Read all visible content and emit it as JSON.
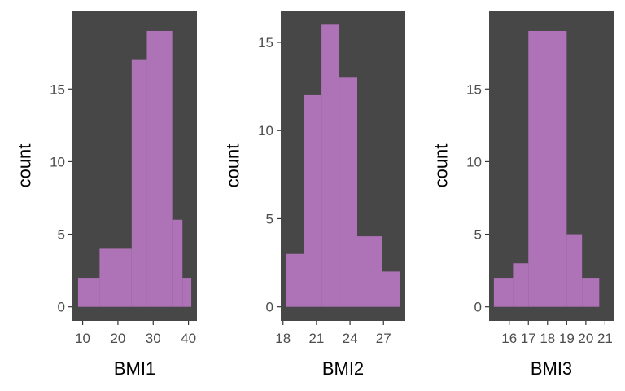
{
  "colors": {
    "panel_bg": "#474747",
    "bar_fill": "#ae72b6",
    "tick_text": "#4d4d4d",
    "axis_title": "#000000"
  },
  "chart_data": [
    {
      "type": "bar",
      "xlabel": "BMI1",
      "ylabel": "count",
      "xlim": [
        7.1,
        42.4
      ],
      "ylim": [
        -0.97,
        20.4
      ],
      "xticks": [
        10,
        20,
        30,
        40
      ],
      "xtick_labels": [
        "10",
        "20",
        "30",
        "40"
      ],
      "yticks": [
        0,
        5,
        10,
        15
      ],
      "ytick_labels": [
        "0",
        "5",
        "10",
        "15"
      ],
      "bins": [
        {
          "x0": 8.7,
          "x1": 14.8,
          "count": 2
        },
        {
          "x0": 14.8,
          "x1": 23.9,
          "count": 4
        },
        {
          "x0": 23.9,
          "x1": 28.2,
          "count": 17
        },
        {
          "x0": 28.2,
          "x1": 35.4,
          "count": 19
        },
        {
          "x0": 35.4,
          "x1": 38.3,
          "count": 6
        },
        {
          "x0": 38.3,
          "x1": 40.8,
          "count": 2
        }
      ],
      "grid": false
    },
    {
      "type": "bar",
      "xlabel": "BMI2",
      "ylabel": "count",
      "xlim": [
        17.8,
        28.95
      ],
      "ylim": [
        -0.8,
        16.8
      ],
      "xticks": [
        18,
        21,
        24,
        27
      ],
      "xtick_labels": [
        "18",
        "21",
        "24",
        "27"
      ],
      "yticks": [
        0,
        5,
        10,
        15
      ],
      "ytick_labels": [
        "0",
        "5",
        "10",
        "15"
      ],
      "bins": [
        {
          "x0": 18.25,
          "x1": 19.85,
          "count": 3
        },
        {
          "x0": 19.85,
          "x1": 21.45,
          "count": 12
        },
        {
          "x0": 21.45,
          "x1": 23.05,
          "count": 16
        },
        {
          "x0": 23.05,
          "x1": 24.65,
          "count": 13
        },
        {
          "x0": 24.65,
          "x1": 26.85,
          "count": 4
        },
        {
          "x0": 26.85,
          "x1": 28.45,
          "count": 2
        }
      ],
      "grid": false
    },
    {
      "type": "bar",
      "xlabel": "BMI3",
      "ylabel": "count",
      "xlim": [
        14.95,
        21.45
      ],
      "ylim": [
        -0.97,
        20.4
      ],
      "xticks": [
        16,
        17,
        18,
        19,
        20,
        21
      ],
      "xtick_labels": [
        "16",
        "17",
        "18",
        "19",
        "20",
        "21"
      ],
      "yticks": [
        0,
        5,
        10,
        15
      ],
      "ytick_labels": [
        "0",
        "5",
        "10",
        "15"
      ],
      "bins": [
        {
          "x0": 15.2,
          "x1": 16.2,
          "count": 2
        },
        {
          "x0": 16.2,
          "x1": 17.0,
          "count": 3
        },
        {
          "x0": 17.0,
          "x1": 19.0,
          "count": 19
        },
        {
          "x0": 19.0,
          "x1": 19.8,
          "count": 5
        },
        {
          "x0": 19.8,
          "x1": 20.7,
          "count": 2
        }
      ],
      "grid": false
    }
  ]
}
